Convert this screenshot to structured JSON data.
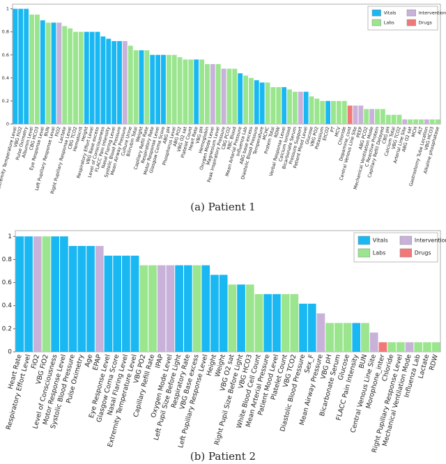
{
  "chart_data": [
    {
      "type": "bar",
      "caption": "(a) Patient 1",
      "ylim": [
        0,
        1.04
      ],
      "yticks": [
        0,
        0.2,
        0.4,
        0.6,
        0.8,
        1
      ],
      "legend_position": "upper right",
      "legend": [
        {
          "name": "Vitals",
          "color": "#1ab8f2"
        },
        {
          "name": "Interventions",
          "color": "#c8b2d9"
        },
        {
          "name": "Labs",
          "color": "#9be58f"
        },
        {
          "name": "Drugs",
          "color": "#f27878"
        }
      ],
      "categories": [
        "Extremity Temperature Level",
        "VBG FiO2",
        "Pulse Oximetry",
        "Albumin Level",
        "CBG HCO3",
        "Eye Response Level",
        "BUN",
        "Left Pupillary Response Level",
        "FiO2",
        "Lactate",
        "Right Pupillary Response Level",
        "CBG TCO2",
        "Hematocrit",
        "Height",
        "Respiratory Effort Level",
        "VBG Base excess",
        "Level of Consciousness",
        "FLACC Pain Intensity",
        "Nasal Flaring Level",
        "Systolic Blood Pressure",
        "Mean Airway Pressure",
        "Culture Urine",
        "Bilirubin Total",
        "Weight",
        "Capillary Refill Rate",
        "Respiratory Rate",
        "Motor Response Level",
        "Glasgow Coma Score",
        "ABG pH",
        "Phosphorus Level",
        "ABG PO2",
        "VBG O2 sat",
        "Platelet Count",
        "Heart Rate",
        "VBG pH",
        "Hemoglobin",
        "Oxygen Mode Level",
        "Magnesium Level",
        "Peak Inspiratory Pressure",
        "CBG PCO2",
        "RBC Blood",
        "Mean Arterial Pressure",
        "Influenza Lab",
        "ABG base excess",
        "Diastolic Blood Pressure",
        "Temperature",
        "MCHC",
        "Protein Total",
        "RDW",
        "Verbal Response Level",
        "Calcium Ionized",
        "Bicarbonate Serum",
        "Pressure Support",
        "Patient Mood Level",
        "Glucose",
        "VBG PO2",
        "Potassium",
        "EtCO2",
        "PT",
        "MCV",
        "Chloride",
        "Dopamine_cont",
        "Central Venous Line Site",
        "PEEP",
        "ABG PCO2",
        "Mechanical Ventilation Mode",
        "C Reactive Protein",
        "Capillary Refill Delayed",
        "CBG pH",
        "Calcium Total",
        "VBG TCO2",
        "Arterial Line Site",
        "ABG O2 sat",
        "MCH",
        "ALT",
        "Gastrostomy Tube Location",
        "VBG HCO3",
        "Alkaline phosphatase"
      ],
      "values": [
        1,
        1,
        1,
        0.95,
        0.95,
        0.9,
        0.88,
        0.88,
        0.88,
        0.85,
        0.83,
        0.8,
        0.8,
        0.8,
        0.8,
        0.8,
        0.76,
        0.74,
        0.72,
        0.72,
        0.72,
        0.68,
        0.64,
        0.64,
        0.64,
        0.6,
        0.6,
        0.6,
        0.6,
        0.6,
        0.58,
        0.56,
        0.56,
        0.56,
        0.56,
        0.52,
        0.52,
        0.52,
        0.48,
        0.48,
        0.48,
        0.44,
        0.42,
        0.4,
        0.38,
        0.36,
        0.36,
        0.32,
        0.32,
        0.32,
        0.3,
        0.28,
        0.28,
        0.28,
        0.24,
        0.22,
        0.2,
        0.2,
        0.2,
        0.2,
        0.2,
        0.16,
        0.16,
        0.16,
        0.13,
        0.13,
        0.13,
        0.13,
        0.08,
        0.08,
        0.08,
        0.04,
        0.04,
        0.04,
        0.04,
        0.04,
        0.04,
        0.04
      ],
      "colors": [
        "#1ab8f2",
        "#1ab8f2",
        "#1ab8f2",
        "#9be58f",
        "#9be58f",
        "#1ab8f2",
        "#9be58f",
        "#1ab8f2",
        "#c8b2d9",
        "#9be58f",
        "#9be58f",
        "#9be58f",
        "#9be58f",
        "#1ab8f2",
        "#1ab8f2",
        "#1ab8f2",
        "#1ab8f2",
        "#1ab8f2",
        "#1ab8f2",
        "#1ab8f2",
        "#c8b2d9",
        "#9be58f",
        "#9be58f",
        "#1ab8f2",
        "#9be58f",
        "#1ab8f2",
        "#1ab8f2",
        "#1ab8f2",
        "#9be58f",
        "#9be58f",
        "#9be58f",
        "#9be58f",
        "#9be58f",
        "#1ab8f2",
        "#9be58f",
        "#9be58f",
        "#c8b2d9",
        "#9be58f",
        "#c8b2d9",
        "#9be58f",
        "#9be58f",
        "#1ab8f2",
        "#9be58f",
        "#9be58f",
        "#1ab8f2",
        "#1ab8f2",
        "#9be58f",
        "#9be58f",
        "#9be58f",
        "#1ab8f2",
        "#9be58f",
        "#9be58f",
        "#c8b2d9",
        "#1ab8f2",
        "#9be58f",
        "#9be58f",
        "#9be58f",
        "#1ab8f2",
        "#9be58f",
        "#9be58f",
        "#9be58f",
        "#f27878",
        "#c8b2d9",
        "#c8b2d9",
        "#9be58f",
        "#c8b2d9",
        "#9be58f",
        "#9be58f",
        "#9be58f",
        "#9be58f",
        "#9be58f",
        "#c8b2d9",
        "#9be58f",
        "#9be58f",
        "#9be58f",
        "#c8b2d9",
        "#9be58f",
        "#9be58f"
      ]
    },
    {
      "type": "bar",
      "caption": "(b) Patient 2",
      "ylim": [
        0,
        1.05
      ],
      "yticks": [
        0,
        0.2,
        0.4,
        0.6,
        0.8,
        1
      ],
      "legend_position": "upper right",
      "legend": [
        {
          "name": "Vitals",
          "color": "#1ab8f2"
        },
        {
          "name": "Interventions",
          "color": "#c8b2d9"
        },
        {
          "name": "Labs",
          "color": "#9be58f"
        },
        {
          "name": "Drugs",
          "color": "#f27878"
        }
      ],
      "categories": [
        "Heart Rate",
        "Respiratory Effort Level",
        "FiO2",
        "VBG FiO2",
        "Level of Consciousness",
        "Motor Response Level",
        "Systolic Blood Pressure",
        "Pulse Oximetry",
        "Age",
        "EPAP",
        "Eye Response Level",
        "Glasgow Coma Score",
        "Nasal Flaring Level",
        "Extremity Temperature Level",
        "VBG PO2",
        "Capillary Refill Rate",
        "IPAP",
        "Oxygen Mode Level",
        "Left Pupil Size Before Light",
        "Respiratory Rate",
        "VBG Base excess",
        "Left Pupillary Response Level",
        "Height",
        "Weight",
        "VBG O2 sat",
        "Right Pupil Size Before Light",
        "VBG HCO3",
        "White Blood Cell Count",
        "Mean Arterial Pressure",
        "Patient Mood Level",
        "Platelet Count",
        "VBG TCO2",
        "Diastolic Blood Pressure",
        "Sex_F",
        "Mean Airway Pressure",
        "VBG pH",
        "Bicarbonate Serum",
        "Glucose",
        "FLACC Pain Intensity",
        "BUN",
        "Central Venous Line Site",
        "Morophone_inter",
        "Chloride",
        "Right Pupillary Response Level",
        "Mechanical Ventilation Mode",
        "Influenza Lab",
        "Lactate",
        "RDW"
      ],
      "values": [
        1,
        1,
        1,
        1,
        1,
        1,
        0.917,
        0.917,
        0.917,
        0.917,
        0.833,
        0.833,
        0.833,
        0.833,
        0.75,
        0.75,
        0.75,
        0.75,
        0.75,
        0.75,
        0.75,
        0.75,
        0.667,
        0.667,
        0.583,
        0.583,
        0.583,
        0.5,
        0.5,
        0.5,
        0.5,
        0.5,
        0.417,
        0.417,
        0.333,
        0.25,
        0.25,
        0.25,
        0.25,
        0.25,
        0.167,
        0.083,
        0.083,
        0.083,
        0.083,
        0.083,
        0.083,
        0.083
      ],
      "colors": [
        "#1ab8f2",
        "#1ab8f2",
        "#c8b2d9",
        "#9be58f",
        "#1ab8f2",
        "#1ab8f2",
        "#1ab8f2",
        "#1ab8f2",
        "#1ab8f2",
        "#c8b2d9",
        "#1ab8f2",
        "#1ab8f2",
        "#1ab8f2",
        "#1ab8f2",
        "#9be58f",
        "#9be58f",
        "#c8b2d9",
        "#c8b2d9",
        "#1ab8f2",
        "#1ab8f2",
        "#9be58f",
        "#1ab8f2",
        "#1ab8f2",
        "#1ab8f2",
        "#9be58f",
        "#1ab8f2",
        "#9be58f",
        "#9be58f",
        "#1ab8f2",
        "#1ab8f2",
        "#9be58f",
        "#9be58f",
        "#1ab8f2",
        "#1ab8f2",
        "#c8b2d9",
        "#9be58f",
        "#9be58f",
        "#9be58f",
        "#1ab8f2",
        "#9be58f",
        "#c8b2d9",
        "#f27878",
        "#9be58f",
        "#9be58f",
        "#c8b2d9",
        "#9be58f",
        "#9be58f",
        "#9be58f"
      ]
    }
  ]
}
